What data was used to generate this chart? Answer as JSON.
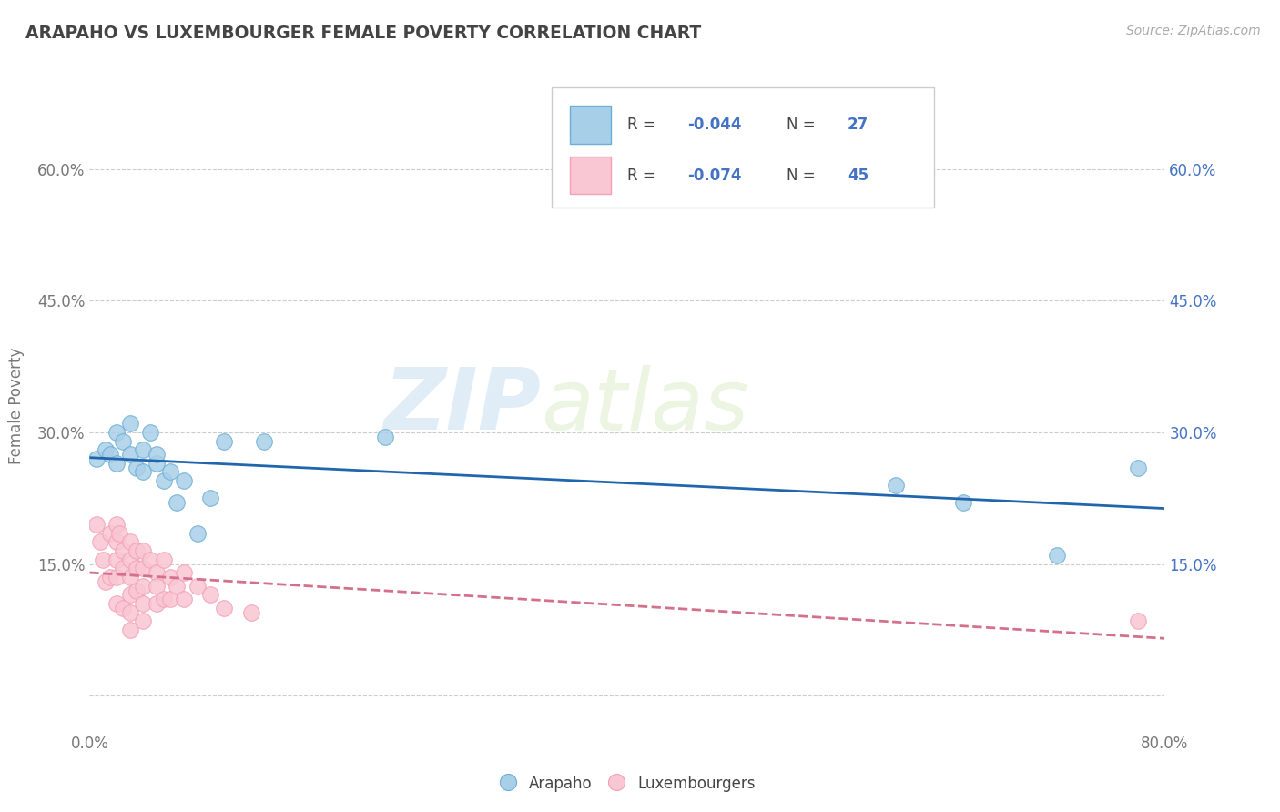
{
  "title": "ARAPAHO VS LUXEMBOURGER FEMALE POVERTY CORRELATION CHART",
  "source": "Source: ZipAtlas.com",
  "ylabel": "Female Poverty",
  "xlim": [
    0.0,
    0.8
  ],
  "ylim": [
    -0.04,
    0.7
  ],
  "yticks": [
    0.0,
    0.15,
    0.3,
    0.45,
    0.6
  ],
  "ytick_labels_left": [
    "",
    "15.0%",
    "30.0%",
    "45.0%",
    "60.0%"
  ],
  "ytick_labels_right": [
    "",
    "15.0%",
    "30.0%",
    "45.0%",
    "60.0%"
  ],
  "arapaho_R": "-0.044",
  "arapaho_N": "27",
  "luxembourger_R": "-0.074",
  "luxembourger_N": "45",
  "arapaho_dot_color": "#a8cfe8",
  "arapaho_edge_color": "#6baed6",
  "luxembourger_dot_color": "#f9c6d3",
  "luxembourger_edge_color": "#f4a0b5",
  "trend_blue": "#2166ac",
  "trend_pink": "#d4708a",
  "background": "#ffffff",
  "watermark_zip": "ZIP",
  "watermark_atlas": "atlas",
  "arapaho_x": [
    0.005,
    0.012,
    0.015,
    0.02,
    0.02,
    0.025,
    0.03,
    0.03,
    0.035,
    0.04,
    0.04,
    0.045,
    0.05,
    0.05,
    0.055,
    0.06,
    0.065,
    0.07,
    0.08,
    0.09,
    0.1,
    0.13,
    0.22,
    0.6,
    0.65,
    0.72,
    0.78
  ],
  "arapaho_y": [
    0.27,
    0.28,
    0.275,
    0.3,
    0.265,
    0.29,
    0.275,
    0.31,
    0.26,
    0.255,
    0.28,
    0.3,
    0.265,
    0.275,
    0.245,
    0.255,
    0.22,
    0.245,
    0.185,
    0.225,
    0.29,
    0.29,
    0.295,
    0.24,
    0.22,
    0.16,
    0.26
  ],
  "luxembourger_x": [
    0.005,
    0.008,
    0.01,
    0.012,
    0.015,
    0.015,
    0.02,
    0.02,
    0.02,
    0.02,
    0.02,
    0.022,
    0.025,
    0.025,
    0.025,
    0.03,
    0.03,
    0.03,
    0.03,
    0.03,
    0.03,
    0.035,
    0.035,
    0.035,
    0.04,
    0.04,
    0.04,
    0.04,
    0.04,
    0.045,
    0.05,
    0.05,
    0.05,
    0.055,
    0.055,
    0.06,
    0.06,
    0.065,
    0.07,
    0.07,
    0.08,
    0.09,
    0.1,
    0.12,
    0.78
  ],
  "luxembourger_y": [
    0.195,
    0.175,
    0.155,
    0.13,
    0.185,
    0.135,
    0.195,
    0.175,
    0.155,
    0.135,
    0.105,
    0.185,
    0.165,
    0.145,
    0.1,
    0.175,
    0.155,
    0.135,
    0.115,
    0.095,
    0.075,
    0.165,
    0.145,
    0.12,
    0.165,
    0.145,
    0.125,
    0.105,
    0.085,
    0.155,
    0.14,
    0.125,
    0.105,
    0.155,
    0.11,
    0.135,
    0.11,
    0.125,
    0.14,
    0.11,
    0.125,
    0.115,
    0.1,
    0.095,
    0.085
  ]
}
